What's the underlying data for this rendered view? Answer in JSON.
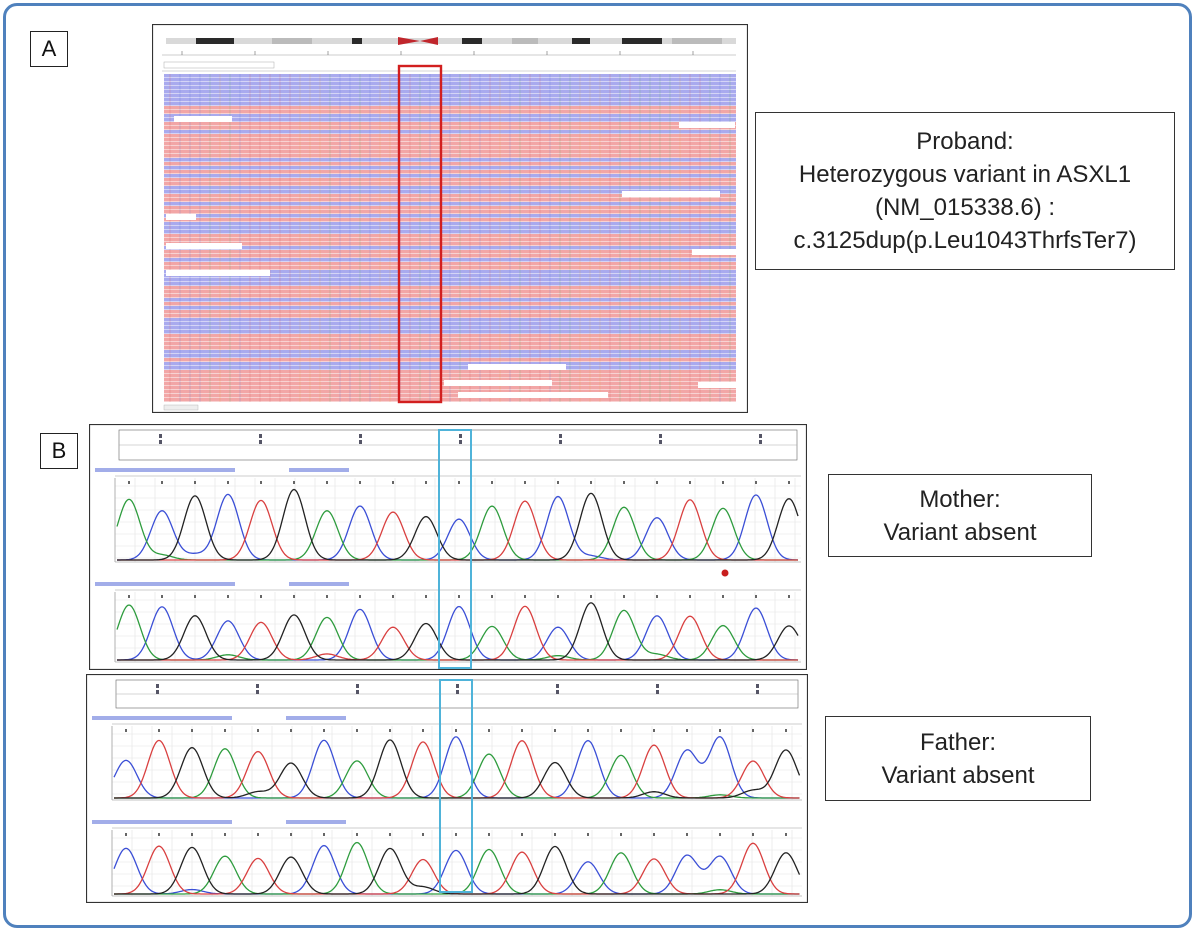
{
  "panels": {
    "a": {
      "letter": "A",
      "caption_lines": [
        "Proband:",
        "Heterozygous variant in ASXL1",
        "(NM_015338.6) :",
        "c.3125dup(p.Leu1043ThrfsTer7)"
      ]
    },
    "b": {
      "letter": "B",
      "mother_lines": [
        "Mother:",
        "Variant absent"
      ],
      "father_lines": [
        "Father:",
        "Variant absent"
      ]
    }
  },
  "colors": {
    "frame": "#4f81bd",
    "read_pink": "#f2a6a6",
    "read_blue": "#a9aaee",
    "variant_box": "#d21f1f",
    "highlight_box": "#4fb3d9",
    "trace_blue": "#3b4fd6",
    "trace_green": "#2e9c3e",
    "trace_red": "#d94040",
    "trace_black": "#222222"
  },
  "icons": {
    "mother_marker": "red-dot-icon"
  }
}
